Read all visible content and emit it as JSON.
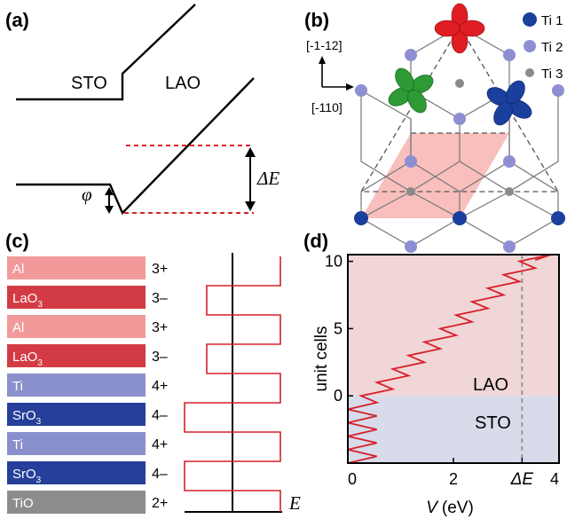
{
  "panel_a": {
    "label": "(a)",
    "sto_label": "STO",
    "lao_label": "LAO",
    "phi_label": "φ",
    "delta_e_label": "ΔE"
  },
  "panel_b": {
    "label": "(b)",
    "direction_vertical": "[-1-12]",
    "direction_horizontal": "[-110]",
    "legend": [
      {
        "label": "Ti 1",
        "color": "#1b3f9c"
      },
      {
        "label": "Ti 2",
        "color": "#8e8fd3"
      },
      {
        "label": "Ti 3",
        "color": "#8a8a8a"
      }
    ],
    "orbital_colors": {
      "top": "#e01d22",
      "left": "#2d9a34",
      "right": "#1b3f9c"
    },
    "shaded_color": "#f7b8b5"
  },
  "panel_c": {
    "label": "(c)",
    "layers": [
      {
        "name": "Al",
        "sub": "",
        "charge": "3+",
        "color": "#f29a9a"
      },
      {
        "name": "LaO",
        "sub": "3",
        "charge": "3–",
        "color": "#d33b44"
      },
      {
        "name": "Al",
        "sub": "",
        "charge": "3+",
        "color": "#f29a9a"
      },
      {
        "name": "LaO",
        "sub": "3",
        "charge": "3–",
        "color": "#d33b44"
      },
      {
        "name": "Ti",
        "sub": "",
        "charge": "4+",
        "color": "#8a90cc"
      },
      {
        "name": "SrO",
        "sub": "3",
        "charge": "4–",
        "color": "#263f9a"
      },
      {
        "name": "Ti",
        "sub": "",
        "charge": "4+",
        "color": "#8a90cc"
      },
      {
        "name": "SrO",
        "sub": "3",
        "charge": "4–",
        "color": "#263f9a"
      },
      {
        "name": "TiO",
        "sub": "",
        "charge": "2+",
        "color": "#8a8d8c"
      }
    ],
    "field_label": "E"
  },
  "panel_d": {
    "label": "(d)",
    "chart_data": {
      "type": "line",
      "xlabel_var": "V",
      "xlabel_unit": "(eV)",
      "ylabel": "unit cells",
      "xlim": [
        0,
        4
      ],
      "ylim": [
        -5,
        10.5
      ],
      "xticks": [
        "0",
        "2",
        "ΔE",
        "4"
      ],
      "xtick_values": [
        0,
        2,
        3.3,
        4
      ],
      "yticks": [
        "0",
        "5",
        "10"
      ],
      "ytick_values": [
        0,
        5,
        10
      ],
      "delta_e_value": 3.3,
      "region_labels": [
        {
          "text": "LAO",
          "color": "#f0d6d6"
        },
        {
          "text": "STO",
          "color": "#d7dbea"
        }
      ],
      "series": [
        {
          "color": "#d7202a",
          "x": [
            0,
            0.55,
            0,
            0.55,
            0,
            0.55,
            0,
            0.55,
            0,
            0.55,
            0.25,
            0.85,
            0.55,
            1.15,
            0.85,
            1.45,
            1.15,
            1.75,
            1.45,
            2.05,
            1.75,
            2.35,
            2.05,
            2.65,
            2.35,
            2.95,
            2.65,
            3.25,
            2.95,
            3.55,
            3.25,
            3.85,
            3.55
          ],
          "y": [
            -5,
            -4.5,
            -4,
            -3.5,
            -3,
            -2.5,
            -2,
            -1.5,
            -1,
            -0.5,
            0,
            0.5,
            1,
            1.5,
            2,
            2.5,
            3,
            3.5,
            4,
            4.5,
            5,
            5.5,
            6,
            6.5,
            7,
            7.5,
            8,
            8.5,
            9,
            9.5,
            10,
            10.5,
            10.1
          ]
        }
      ]
    }
  }
}
